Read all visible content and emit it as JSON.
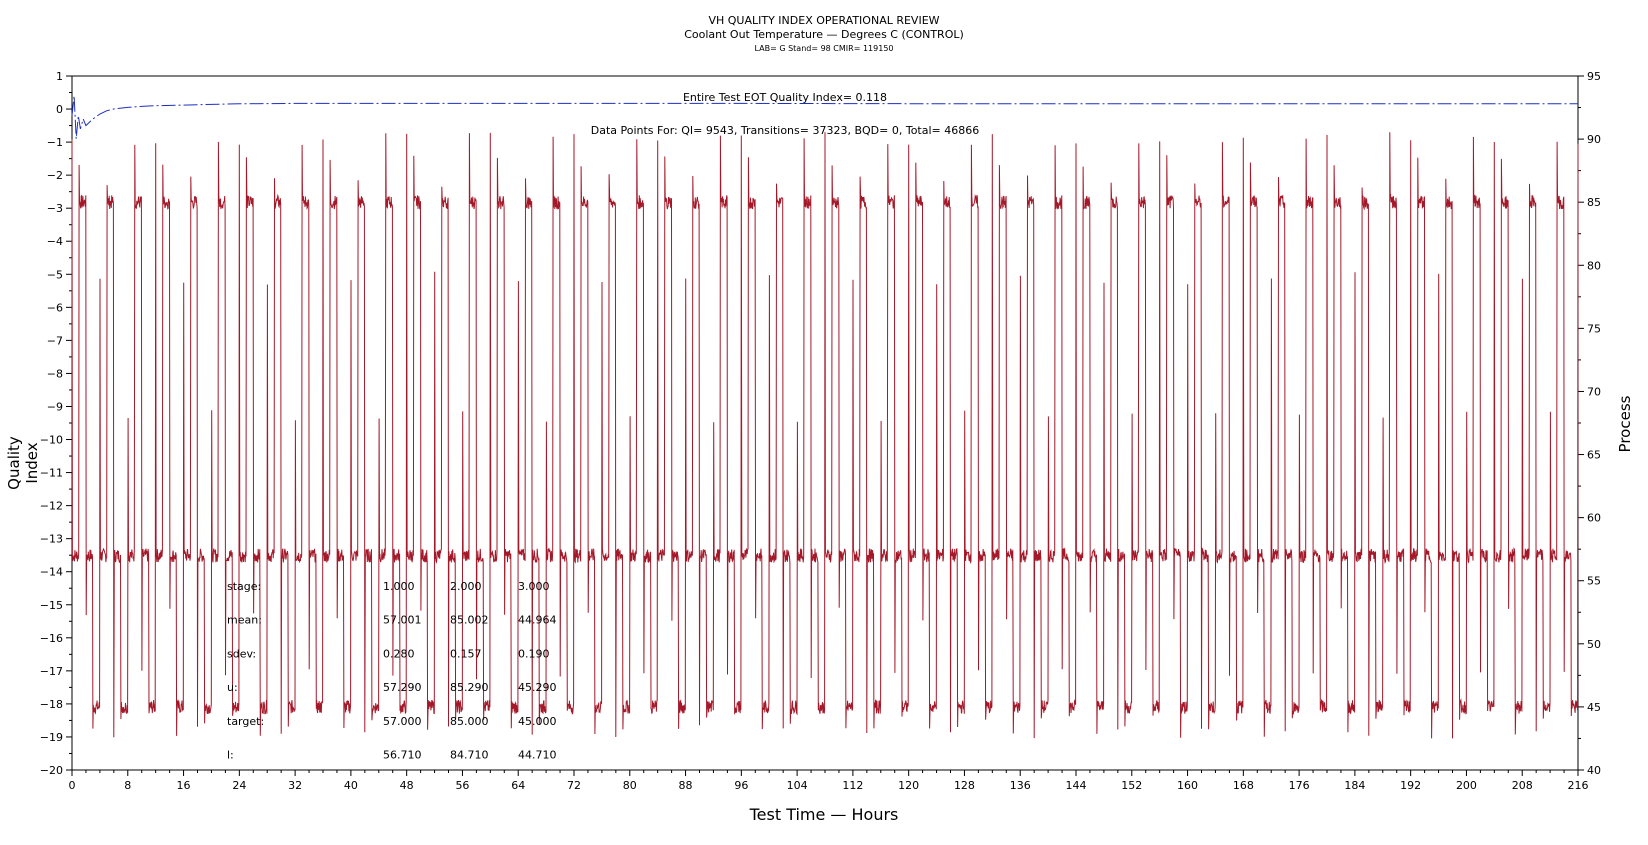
{
  "titles": {
    "line1": "VH QUALITY INDEX OPERATIONAL REVIEW",
    "line2": "Coolant Out Temperature — Degrees C (CONTROL)",
    "line3": "LAB= G Stand= 98 CMIR= 119150"
  },
  "annotations": {
    "qi_label": "Entire Test EOT Quality Index=  0.118",
    "data_points": "Data Points For: QI=  9543, Transitions= 37323, BQD=     0, Total= 46866"
  },
  "chart_data": {
    "type": "line",
    "xlabel": "Test Time — Hours",
    "ylabel_left": "Quality Index",
    "ylabel_right": "Process",
    "x_range": [
      0,
      216
    ],
    "y_left_range": [
      -20,
      1
    ],
    "y_right_range": [
      40,
      95
    ],
    "x_ticks": [
      0,
      8,
      16,
      24,
      32,
      40,
      48,
      56,
      64,
      72,
      80,
      88,
      96,
      104,
      112,
      120,
      128,
      136,
      144,
      152,
      160,
      168,
      176,
      184,
      192,
      200,
      208,
      216
    ],
    "y_left_ticks": [
      1,
      0,
      -1,
      -2,
      -3,
      -4,
      -5,
      -6,
      -7,
      -8,
      -9,
      -10,
      -11,
      -12,
      -13,
      -14,
      -15,
      -16,
      -17,
      -18,
      -19,
      -20
    ],
    "y_right_ticks": [
      95,
      90,
      85,
      80,
      75,
      70,
      65,
      60,
      55,
      50,
      45,
      40
    ],
    "series": [
      {
        "axis": "left",
        "color": "#1f2fc0",
        "style": "dash-dot",
        "x": [
          0,
          0.3,
          0.6,
          0.9,
          1.2,
          1.6,
          2,
          2.5,
          3,
          4,
          5,
          6,
          8,
          10,
          12,
          16,
          20,
          24,
          32,
          48,
          64,
          96,
          128,
          160,
          192,
          216
        ],
        "y": [
          -0.2,
          0.4,
          -0.9,
          -0.2,
          -0.6,
          -0.3,
          -0.5,
          -0.4,
          -0.3,
          -0.15,
          -0.05,
          0.0,
          0.05,
          0.08,
          0.1,
          0.12,
          0.14,
          0.16,
          0.17,
          0.17,
          0.17,
          0.17,
          0.16,
          0.16,
          0.16,
          0.16
        ]
      },
      {
        "axis": "right",
        "color": "#a3192a",
        "style": "solid",
        "cycle_hours": 4,
        "stage_levels": [
          57,
          85,
          45
        ],
        "stage_sequence": [
          57,
          85,
          57,
          45
        ],
        "peak_high": 90,
        "dip_low": 43
      }
    ],
    "stats_table": {
      "rows": [
        {
          "label": "stage:",
          "values": [
            "1.000",
            "2.000",
            "3.000"
          ]
        },
        {
          "label": "mean:",
          "values": [
            "57.001",
            "85.002",
            "44.964"
          ]
        },
        {
          "label": "sdev:",
          "values": [
            "0.280",
            "0.157",
            "0.190"
          ]
        },
        {
          "label": "u:",
          "values": [
            "57.290",
            "85.290",
            "45.290"
          ]
        },
        {
          "label": "target:",
          "values": [
            "57.000",
            "85.000",
            "45.000"
          ]
        },
        {
          "label": "l:",
          "values": [
            "56.710",
            "84.710",
            "44.710"
          ]
        }
      ]
    }
  }
}
